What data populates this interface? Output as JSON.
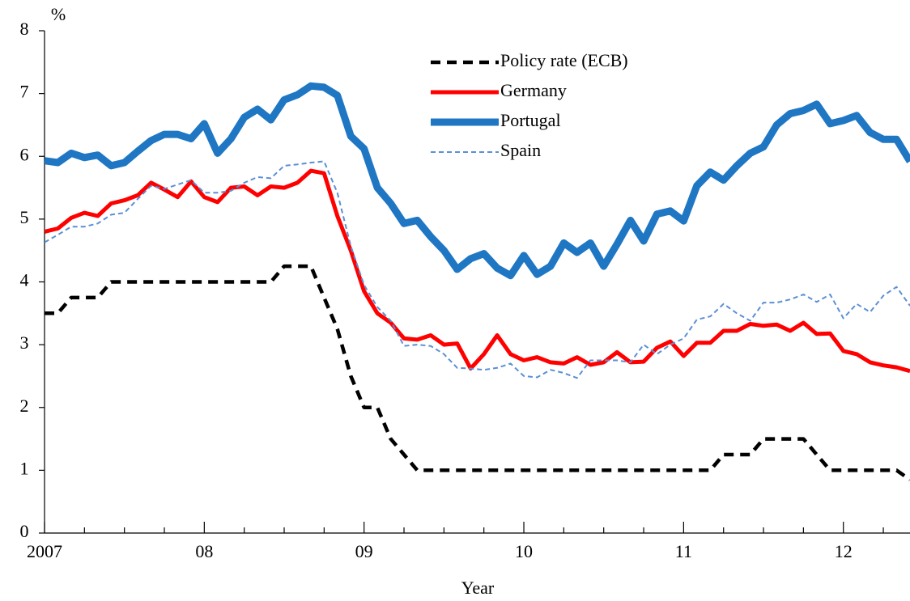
{
  "chart_data": {
    "type": "line",
    "ylabel": "%",
    "xlabel": "Year",
    "xlim": [
      2007,
      2012.417
    ],
    "ylim": [
      0,
      8
    ],
    "yticks": [
      0,
      1,
      2,
      3,
      4,
      5,
      6,
      7,
      8
    ],
    "xticks": [
      2007,
      {
        "value": 2008,
        "label": "08"
      },
      {
        "value": 2009,
        "label": "09"
      },
      {
        "value": 2010,
        "label": "10"
      },
      {
        "value": 2011,
        "label": "11"
      },
      {
        "value": 2012,
        "label": "12"
      }
    ],
    "legend": "top-center",
    "x": [
      2007,
      2007.083,
      2007.167,
      2007.25,
      2007.333,
      2007.417,
      2007.5,
      2007.583,
      2007.667,
      2007.75,
      2007.833,
      2007.917,
      2008,
      2008.083,
      2008.167,
      2008.25,
      2008.333,
      2008.417,
      2008.5,
      2008.583,
      2008.667,
      2008.75,
      2008.833,
      2008.917,
      2009,
      2009.083,
      2009.167,
      2009.25,
      2009.333,
      2009.417,
      2009.5,
      2009.583,
      2009.667,
      2009.75,
      2009.833,
      2009.917,
      2010,
      2010.083,
      2010.167,
      2010.25,
      2010.333,
      2010.417,
      2010.5,
      2010.583,
      2010.667,
      2010.75,
      2010.833,
      2010.917,
      2011,
      2011.083,
      2011.167,
      2011.25,
      2011.333,
      2011.417,
      2011.5,
      2011.583,
      2011.667,
      2011.75,
      2011.833,
      2011.917,
      2012,
      2012.083,
      2012.167,
      2012.25,
      2012.333,
      2012.417
    ],
    "series": [
      {
        "name": "Policy rate (ECB)",
        "color": "#000000",
        "values": [
          3.5,
          3.5,
          3.75,
          3.75,
          3.75,
          4,
          4,
          4,
          4,
          4,
          4,
          4,
          4,
          4,
          4,
          4,
          4,
          4,
          4.25,
          4.25,
          4.25,
          3.75,
          3.25,
          2.5,
          2,
          2,
          1.5,
          1.25,
          1,
          1,
          1,
          1,
          1,
          1,
          1,
          1,
          1,
          1,
          1,
          1,
          1,
          1,
          1,
          1,
          1,
          1,
          1,
          1,
          1,
          1,
          1,
          1.25,
          1.25,
          1.25,
          1.5,
          1.5,
          1.5,
          1.5,
          1.25,
          1,
          1,
          1,
          1,
          1,
          1,
          0.85
        ]
      },
      {
        "name": "Germany",
        "color": "#ff0000",
        "values": [
          4.8,
          4.85,
          5.02,
          5.1,
          5.05,
          5.25,
          5.3,
          5.38,
          5.58,
          5.47,
          5.35,
          5.6,
          5.35,
          5.27,
          5.5,
          5.52,
          5.38,
          5.52,
          5.5,
          5.58,
          5.77,
          5.73,
          5.05,
          4.5,
          3.85,
          3.5,
          3.35,
          3.1,
          3.08,
          3.15,
          3.0,
          3.02,
          2.62,
          2.85,
          3.15,
          2.85,
          2.75,
          2.8,
          2.72,
          2.7,
          2.8,
          2.68,
          2.72,
          2.88,
          2.72,
          2.73,
          2.95,
          3.05,
          2.82,
          3.03,
          3.03,
          3.22,
          3.22,
          3.33,
          3.3,
          3.32,
          3.22,
          3.35,
          3.17,
          3.18,
          2.9,
          2.85,
          2.72,
          2.67,
          2.64,
          2.58
        ]
      },
      {
        "name": "Portugal",
        "color": "#1f77c4",
        "values": [
          5.93,
          5.9,
          6.05,
          5.98,
          6.02,
          5.85,
          5.9,
          6.08,
          6.25,
          6.35,
          6.35,
          6.28,
          6.52,
          6.05,
          6.28,
          6.62,
          6.75,
          6.58,
          6.9,
          6.98,
          7.12,
          7.1,
          6.97,
          6.32,
          6.12,
          5.5,
          5.25,
          4.93,
          4.98,
          4.72,
          4.5,
          4.2,
          4.37,
          4.45,
          4.22,
          4.1,
          4.42,
          4.12,
          4.25,
          4.62,
          4.47,
          4.62,
          4.25,
          4.6,
          4.98,
          4.65,
          5.08,
          5.13,
          4.97,
          5.53,
          5.75,
          5.62,
          5.85,
          6.05,
          6.15,
          6.5,
          6.68,
          6.73,
          6.83,
          6.52,
          6.57,
          6.65,
          6.38,
          6.27,
          6.27,
          5.92
        ]
      },
      {
        "name": "Spain",
        "color": "#5b8fd4",
        "values": [
          4.63,
          4.75,
          4.88,
          4.88,
          4.93,
          5.07,
          5.1,
          5.32,
          5.53,
          5.48,
          5.55,
          5.62,
          5.42,
          5.42,
          5.45,
          5.58,
          5.67,
          5.65,
          5.85,
          5.87,
          5.9,
          5.92,
          5.42,
          4.57,
          3.95,
          3.6,
          3.38,
          2.98,
          3.0,
          2.98,
          2.85,
          2.63,
          2.62,
          2.6,
          2.63,
          2.7,
          2.5,
          2.48,
          2.6,
          2.55,
          2.47,
          2.75,
          2.75,
          2.75,
          2.72,
          3.0,
          2.85,
          3.0,
          3.1,
          3.4,
          3.45,
          3.65,
          3.5,
          3.38,
          3.67,
          3.67,
          3.72,
          3.8,
          3.68,
          3.8,
          3.42,
          3.65,
          3.52,
          3.78,
          3.92,
          3.62
        ]
      }
    ]
  }
}
